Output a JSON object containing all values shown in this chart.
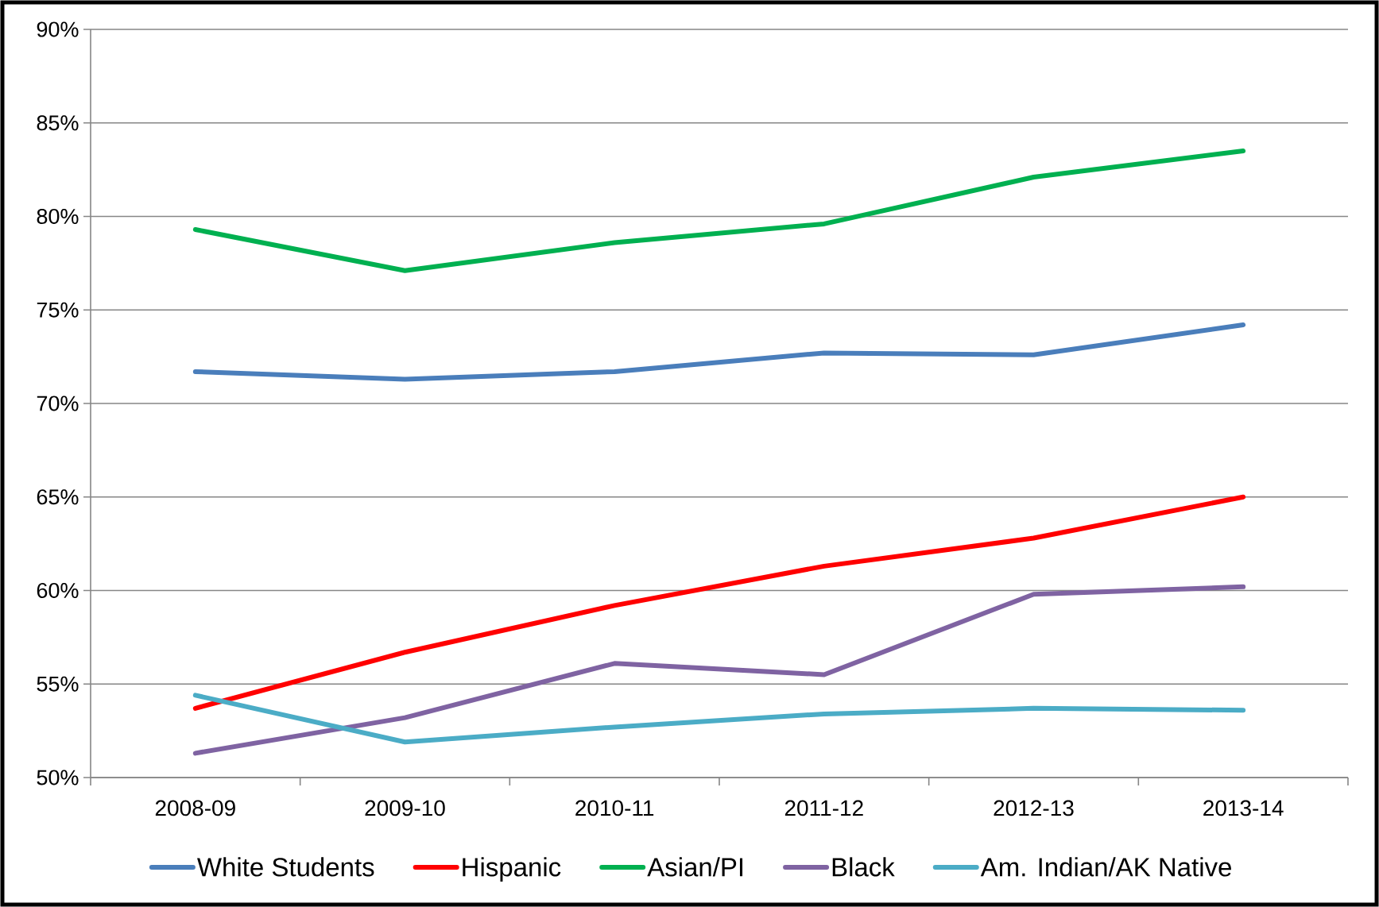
{
  "chart_data": {
    "type": "line",
    "categories": [
      "2008-09",
      "2009-10",
      "2010-11",
      "2011-12",
      "2012-13",
      "2013-14"
    ],
    "series": [
      {
        "name": "White Students",
        "color": "#4a7ebb",
        "values": [
          71.7,
          71.3,
          71.7,
          72.7,
          72.6,
          74.2
        ]
      },
      {
        "name": "Hispanic",
        "color": "#ff0000",
        "values": [
          53.7,
          56.7,
          59.2,
          61.3,
          62.8,
          65.0
        ]
      },
      {
        "name": "Asian/PI",
        "color": "#00b050",
        "values": [
          79.3,
          77.1,
          78.6,
          79.6,
          82.1,
          83.5
        ]
      },
      {
        "name": "Black",
        "color": "#7f63a2",
        "values": [
          51.3,
          53.2,
          56.1,
          55.5,
          59.8,
          60.2
        ]
      },
      {
        "name": "Am. Indian/AK Native",
        "color": "#4bacc6",
        "values": [
          54.4,
          51.9,
          52.7,
          53.4,
          53.7,
          53.6
        ]
      }
    ],
    "ylim": [
      50,
      90
    ],
    "yticks": [
      {
        "value": 50,
        "label": "50%"
      },
      {
        "value": 55,
        "label": "55%"
      },
      {
        "value": 60,
        "label": "60%"
      },
      {
        "value": 65,
        "label": "65%"
      },
      {
        "value": 70,
        "label": "70%"
      },
      {
        "value": 75,
        "label": "75%"
      },
      {
        "value": 80,
        "label": "80%"
      },
      {
        "value": 85,
        "label": "85%"
      },
      {
        "value": 90,
        "label": "90%"
      }
    ],
    "grid": "y",
    "legend": "bottom"
  }
}
